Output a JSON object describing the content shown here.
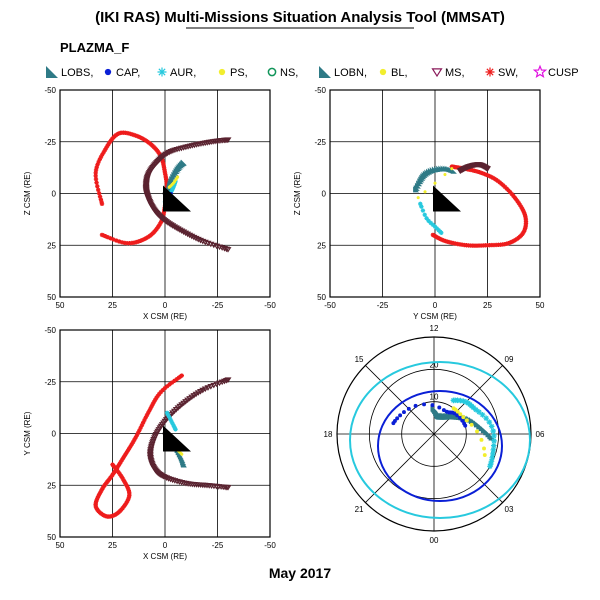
{
  "title": "(IKI RAS) Multi-Missions Situation Analysis Tool (MMSAT)",
  "subtitle": "PLAZMA_F",
  "date_label": "May 2017",
  "legend": [
    {
      "label": "LOBS,",
      "symbol": "triangle-filled",
      "color": "#2e7a86"
    },
    {
      "label": "CAP,",
      "symbol": "dot",
      "color": "#0a1fd6"
    },
    {
      "label": "AUR,",
      "symbol": "asterisk",
      "color": "#27c9de"
    },
    {
      "label": "PS,",
      "symbol": "dot",
      "color": "#f2ee2e"
    },
    {
      "label": "NS,",
      "symbol": "circle",
      "color": "#11955a"
    },
    {
      "label": "LOBN,",
      "symbol": "triangle-filled",
      "color": "#2e7a86"
    },
    {
      "label": "BL,",
      "symbol": "dot",
      "color": "#f2ee2e"
    },
    {
      "label": "MS,",
      "symbol": "triangle-down",
      "color": "#8a1a5a"
    },
    {
      "label": "SW,",
      "symbol": "asterisk",
      "color": "#ee1c1c"
    },
    {
      "label": "CUSP",
      "symbol": "star",
      "color": "#e010e0"
    }
  ],
  "colors": {
    "solar_wind": "#ee1c1c",
    "magnetopause_model": "#5a2330",
    "lobe": "#2e7a86",
    "cap": "#0a1fd6",
    "aurora": "#27c9de",
    "plasma_sheet": "#f2ee2e",
    "earth_wedge": "#000000",
    "polar_circle_outer": "#27c9de",
    "polar_circle_inner": "#0a1fd6"
  },
  "chart_data": [
    {
      "type": "scatter",
      "panel": "XZ",
      "xlabel": "X CSM (RE)",
      "ylabel": "Z CSM (RE)",
      "xlim": [
        50,
        -50
      ],
      "ylim": [
        -50,
        50
      ],
      "xticks": [
        50,
        25,
        0,
        -25,
        -50
      ],
      "yticks": [
        50,
        25,
        0,
        -25,
        -50
      ],
      "grid": true,
      "series": [
        {
          "key": "SW",
          "x": [
            30,
            18,
            8,
            2,
            0,
            -1,
            0,
            2,
            7,
            14,
            22,
            28,
            33,
            30
          ],
          "y": [
            20,
            24,
            21,
            14,
            6,
            -2,
            -10,
            -18,
            -24,
            -28,
            -29,
            -22,
            -10,
            5
          ]
        },
        {
          "key": "MS",
          "x": [
            -30,
            -18,
            -8,
            0,
            5,
            8,
            9,
            8,
            4,
            -2,
            -12,
            -22,
            -30
          ],
          "y": [
            27,
            23,
            18,
            13,
            8,
            2,
            -3,
            -9,
            -15,
            -20,
            -23,
            -25,
            -26
          ]
        },
        {
          "key": "LOBS",
          "x": [
            -1,
            -2,
            -3,
            -5,
            -7,
            -9
          ],
          "y": [
            2,
            -2,
            -6,
            -10,
            -13,
            -15
          ]
        },
        {
          "key": "AUR",
          "x": [
            0,
            -2,
            -4,
            -5
          ],
          "y": [
            4,
            1,
            -3,
            -6
          ]
        },
        {
          "key": "PS",
          "x": [
            -2,
            -4,
            -6
          ],
          "y": [
            -3,
            -5,
            -8
          ]
        },
        {
          "key": "CAP",
          "x": [
            -1,
            -3
          ],
          "y": [
            3,
            0
          ]
        }
      ]
    },
    {
      "type": "scatter",
      "panel": "YZ",
      "xlabel": "Y CSM (RE)",
      "ylabel": "Z CSM (RE)",
      "xlim": [
        -50,
        50
      ],
      "ylim": [
        -50,
        50
      ],
      "xticks": [
        -50,
        -25,
        0,
        25,
        50
      ],
      "yticks": [
        50,
        25,
        0,
        -25,
        -50
      ],
      "grid": true,
      "series": [
        {
          "key": "SW",
          "x": [
            -1,
            5,
            15,
            25,
            35,
            42,
            43,
            38,
            30,
            22,
            14,
            8
          ],
          "y": [
            20,
            23,
            25,
            25,
            24,
            19,
            11,
            2,
            -6,
            -10,
            -12,
            -13
          ]
        },
        {
          "key": "LOBS",
          "x": [
            -9,
            -7,
            -5,
            -2,
            2,
            6,
            9
          ],
          "y": [
            -2,
            -6,
            -9,
            -11,
            -12,
            -12,
            -11
          ]
        },
        {
          "key": "AUR",
          "x": [
            -7,
            -4,
            0,
            3
          ],
          "y": [
            5,
            12,
            16,
            19
          ]
        },
        {
          "key": "PS",
          "x": [
            -8,
            8
          ],
          "y": [
            2,
            -12
          ]
        },
        {
          "key": "MS",
          "x": [
            12,
            16,
            21,
            25
          ],
          "y": [
            -11,
            -13,
            -14,
            -12
          ]
        }
      ]
    },
    {
      "type": "scatter",
      "panel": "XY",
      "xlabel": "X CSM (RE)",
      "ylabel": "Y CSM (RE)",
      "xlim": [
        50,
        -50
      ],
      "ylim": [
        -50,
        50
      ],
      "xticks": [
        50,
        25,
        0,
        -25,
        -50
      ],
      "yticks": [
        -50,
        -25,
        0,
        25,
        50
      ],
      "grid": true,
      "series": [
        {
          "key": "SW",
          "x": [
            -8,
            2,
            8,
            14,
            20,
            25,
            30,
            33,
            28,
            22,
            17,
            20,
            25
          ],
          "y": [
            -28,
            -20,
            -10,
            2,
            12,
            20,
            27,
            35,
            40,
            38,
            30,
            22,
            15
          ]
        },
        {
          "key": "MS",
          "x": [
            -30,
            -18,
            -8,
            0,
            5,
            7,
            5,
            0,
            -10,
            -20,
            -30
          ],
          "y": [
            -26,
            -21,
            -14,
            -6,
            2,
            10,
            17,
            21,
            24,
            25,
            26
          ]
        },
        {
          "key": "LOBS",
          "x": [
            -2,
            -4,
            -6,
            -8,
            -9
          ],
          "y": [
            0,
            4,
            8,
            12,
            15
          ]
        },
        {
          "key": "AUR",
          "x": [
            -1,
            -3,
            -5
          ],
          "y": [
            -10,
            -6,
            -2
          ]
        },
        {
          "key": "PS",
          "x": [
            -6,
            -8
          ],
          "y": [
            8,
            10
          ]
        }
      ]
    },
    {
      "type": "scatter",
      "panel": "polar",
      "radial_ticks": [
        10,
        20
      ],
      "angular_labels": [
        "12",
        "09",
        "06",
        "03",
        "00",
        "21",
        "18",
        "15"
      ],
      "grid": true,
      "series": [
        {
          "key": "LOBS",
          "mlt": [
            5.8,
            6.5,
            7.5,
            8.5,
            9.5,
            10.5,
            11.2,
            12.0
          ],
          "colat": [
            18,
            15,
            12,
            9,
            7,
            6,
            6,
            8
          ]
        },
        {
          "key": "CAP",
          "mlt": [
            7,
            9,
            10.5,
            15,
            17
          ],
          "colat": [
            10,
            9,
            8,
            11,
            13
          ]
        },
        {
          "key": "AUR",
          "mlt": [
            4,
            5,
            6.5,
            8,
            9,
            10
          ],
          "colat": [
            20,
            19,
            18,
            15,
            14,
            12
          ]
        },
        {
          "key": "PS",
          "mlt": [
            4.5,
            7.5,
            9.5
          ],
          "colat": [
            17,
            11,
            10
          ]
        }
      ]
    }
  ]
}
